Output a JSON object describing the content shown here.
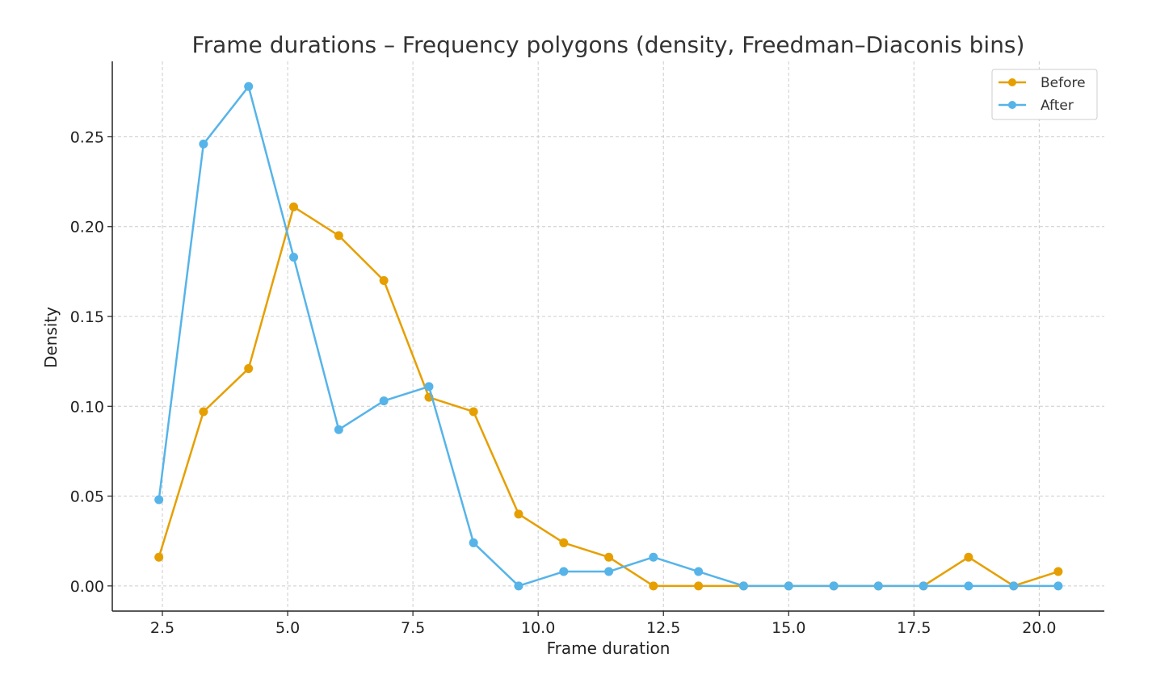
{
  "chart_data": {
    "type": "line",
    "title": "Frame durations – Frequency polygons (density, Freedman–Diaconis bins)",
    "xlabel": "Frame duration",
    "ylabel": "Density",
    "xlim": [
      1.5,
      21.3
    ],
    "ylim": [
      -0.014,
      0.292
    ],
    "xticks": [
      2.5,
      5.0,
      7.5,
      10.0,
      12.5,
      15.0,
      17.5,
      20.0
    ],
    "xtick_labels": [
      "2.5",
      "5.0",
      "7.5",
      "10.0",
      "12.5",
      "15.0",
      "17.5",
      "20.0"
    ],
    "yticks": [
      0.0,
      0.05,
      0.1,
      0.15,
      0.2,
      0.25
    ],
    "ytick_labels": [
      "0.00",
      "0.05",
      "0.10",
      "0.15",
      "0.20",
      "0.25"
    ],
    "grid": true,
    "legend_position": "top-right",
    "x": [
      2.43,
      3.32,
      4.22,
      5.12,
      6.02,
      6.92,
      7.82,
      8.71,
      9.61,
      10.51,
      11.41,
      12.3,
      13.2,
      14.1,
      15.0,
      15.9,
      16.79,
      17.69,
      18.59,
      19.49,
      20.38
    ],
    "series": [
      {
        "name": "Before",
        "color": "#E69F00",
        "values": [
          0.016,
          0.097,
          0.121,
          0.211,
          0.195,
          0.17,
          0.105,
          0.097,
          0.04,
          0.024,
          0.016,
          0.0,
          0.0,
          0.0,
          0.0,
          0.0,
          0.0,
          0.0,
          0.016,
          0.0,
          0.008
        ]
      },
      {
        "name": "After",
        "color": "#56B4E9",
        "values": [
          0.048,
          0.246,
          0.278,
          0.183,
          0.087,
          0.103,
          0.111,
          0.024,
          0.0,
          0.008,
          0.008,
          0.016,
          0.008,
          0.0,
          0.0,
          0.0,
          0.0,
          0.0,
          0.0,
          0.0,
          0.0
        ]
      }
    ]
  }
}
